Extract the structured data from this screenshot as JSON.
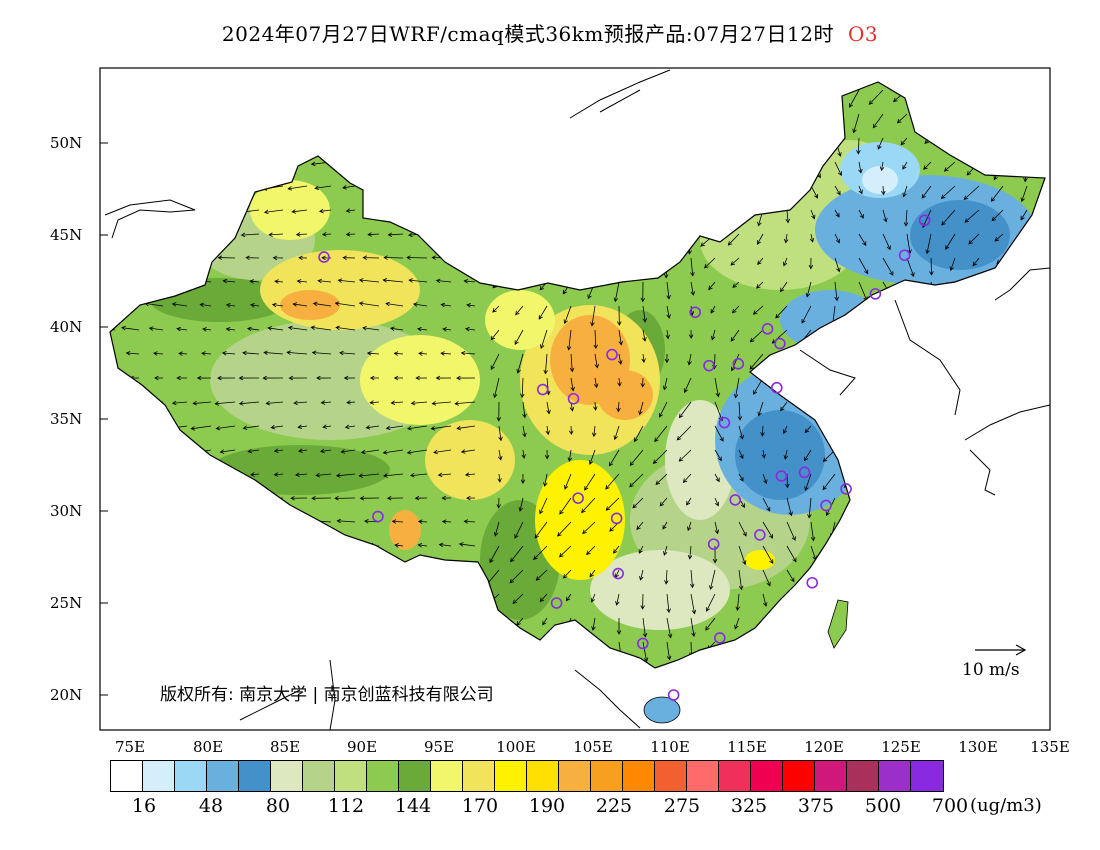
{
  "title": {
    "text": "2024年07月27日WRF/cmaq模式36km预报产品:07月27日12时",
    "variable": "O3"
  },
  "axes": {
    "lat_labels": [
      "50N",
      "45N",
      "40N",
      "35N",
      "30N",
      "25N",
      "20N"
    ],
    "lon_labels": [
      "75E",
      "80E",
      "85E",
      "90E",
      "95E",
      "100E",
      "105E",
      "110E",
      "115E",
      "120E",
      "125E",
      "130E",
      "135E"
    ]
  },
  "copyright": "版权所有: 南京大学 | 南京创蓝科技有限公司",
  "wind_reference": "10 m/s",
  "colorbar": {
    "colors": [
      "#ffffff",
      "#d4eefb",
      "#9ad8f5",
      "#6ab0df",
      "#4490c8",
      "#dde8c0",
      "#b5d48a",
      "#c0e080",
      "#8ccb50",
      "#6aaa38",
      "#f2f66a",
      "#f2e45a",
      "#fff200",
      "#ffe000",
      "#f7b040",
      "#f7a020",
      "#ff8800",
      "#f06030",
      "#ff6a6a",
      "#f0305a",
      "#f00050",
      "#ff0000",
      "#d0187a",
      "#a8305a",
      "#9a30c8",
      "#8a2ae0"
    ],
    "labels": [
      "16",
      "48",
      "80",
      "112",
      "144",
      "170",
      "190",
      "225",
      "275",
      "325",
      "375",
      "500",
      "700"
    ],
    "units": "(ug/m3)"
  },
  "markers": {
    "color": "#8a2ae0",
    "stations": [
      [
        87.6,
        43.8
      ],
      [
        91.1,
        29.7
      ],
      [
        101.8,
        36.6
      ],
      [
        103.8,
        36.1
      ],
      [
        106.3,
        38.5
      ],
      [
        104.1,
        30.7
      ],
      [
        106.6,
        29.6
      ],
      [
        102.7,
        25.0
      ],
      [
        106.7,
        26.6
      ],
      [
        108.3,
        22.8
      ],
      [
        110.3,
        20.0
      ],
      [
        113.3,
        23.1
      ],
      [
        112.9,
        28.2
      ],
      [
        114.3,
        30.6
      ],
      [
        115.9,
        28.7
      ],
      [
        119.3,
        26.1
      ],
      [
        120.2,
        30.3
      ],
      [
        121.5,
        31.2
      ],
      [
        118.8,
        32.1
      ],
      [
        117.3,
        31.9
      ],
      [
        117.0,
        36.7
      ],
      [
        113.6,
        34.8
      ],
      [
        112.6,
        37.9
      ],
      [
        111.7,
        40.8
      ],
      [
        114.5,
        38.0
      ],
      [
        116.4,
        39.9
      ],
      [
        117.2,
        39.1
      ],
      [
        123.4,
        41.8
      ],
      [
        125.3,
        43.9
      ],
      [
        126.6,
        45.8
      ]
    ]
  }
}
